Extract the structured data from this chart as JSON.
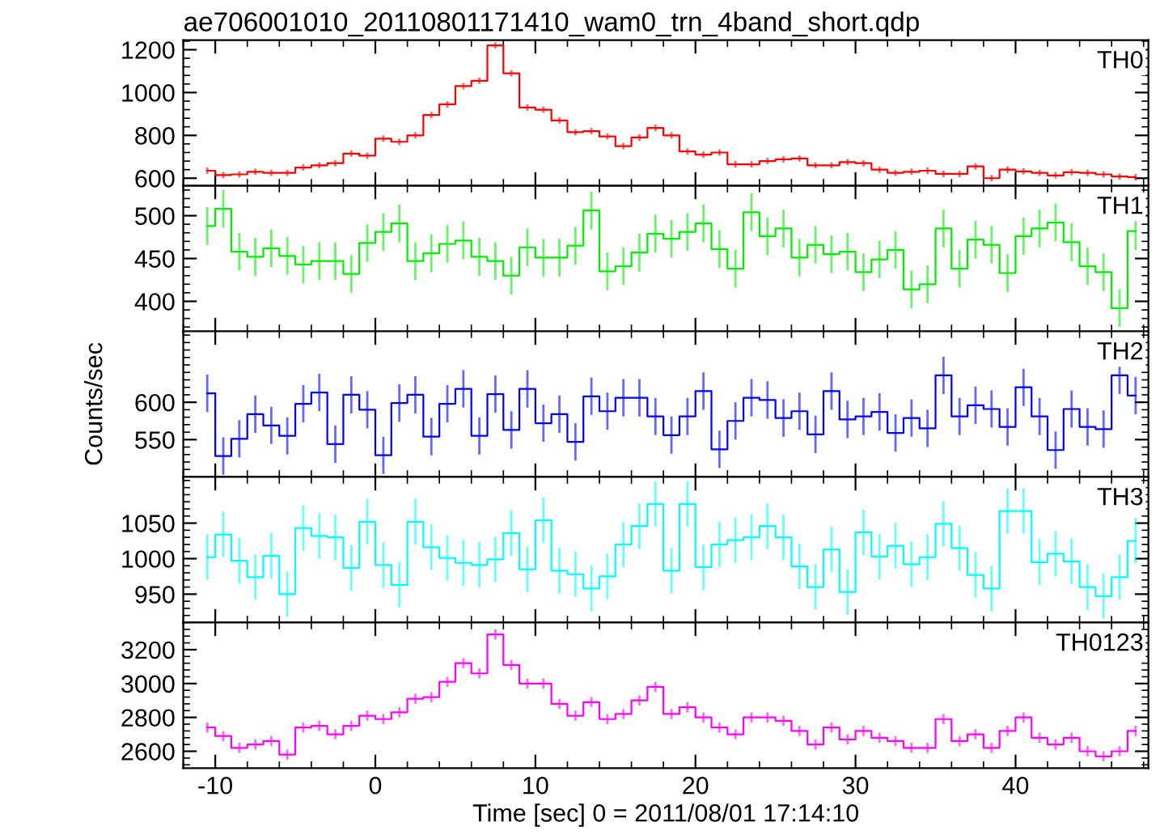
{
  "chart_data": [
    {
      "type": "step",
      "title": "ae706001010_20110801171410_wam0_trn_4band_short.qdp",
      "x": [
        -10.5,
        -9.5,
        -8.5,
        -7.5,
        -6.5,
        -5.5,
        -4.5,
        -3.5,
        -2.5,
        -1.5,
        -0.5,
        0.5,
        1.5,
        2.5,
        3.5,
        4.5,
        5.5,
        6.5,
        7.5,
        8.5,
        9.5,
        10.5,
        11.5,
        12.5,
        13.5,
        14.5,
        15.5,
        16.5,
        17.5,
        18.5,
        19.5,
        20.5,
        21.5,
        22.5,
        23.5,
        24.5,
        25.5,
        26.5,
        27.5,
        28.5,
        29.5,
        30.5,
        31.5,
        32.5,
        33.5,
        34.5,
        35.5,
        36.5,
        37.5,
        38.5,
        39.5,
        40.5,
        41.5,
        42.5,
        43.5,
        44.5,
        45.5,
        46.5,
        47.5
      ],
      "xlim": [
        -12,
        48.3
      ],
      "xticks": [
        -10,
        0,
        10,
        20,
        30,
        40
      ],
      "ylim": [
        565,
        1245
      ],
      "yticks": [
        600,
        800,
        1000,
        1200
      ],
      "tick_labels": "y",
      "series": [
        {
          "name": "TH0",
          "color": "#ff0000",
          "values": [
            635,
            615,
            618,
            630,
            625,
            625,
            650,
            660,
            670,
            715,
            705,
            785,
            770,
            800,
            895,
            945,
            1030,
            1055,
            1220,
            1090,
            930,
            920,
            870,
            815,
            820,
            795,
            750,
            790,
            835,
            800,
            725,
            710,
            720,
            665,
            665,
            680,
            688,
            692,
            660,
            660,
            675,
            670,
            640,
            625,
            630,
            635,
            620,
            620,
            655,
            600,
            640,
            632,
            625,
            613,
            628,
            625,
            618,
            608,
            605
          ],
          "errors": [
            15,
            15,
            15,
            15,
            15,
            15,
            15,
            15,
            15,
            15,
            15,
            15,
            15,
            15,
            15,
            15,
            15,
            15,
            15,
            15,
            15,
            15,
            15,
            15,
            15,
            15,
            15,
            15,
            15,
            15,
            15,
            15,
            15,
            15,
            15,
            15,
            15,
            15,
            15,
            15,
            15,
            15,
            15,
            15,
            15,
            15,
            15,
            15,
            15,
            15,
            15,
            15,
            15,
            15,
            15,
            15,
            15,
            15,
            15
          ]
        }
      ]
    },
    {
      "type": "step",
      "x": [
        -10.5,
        -9.5,
        -8.5,
        -7.5,
        -6.5,
        -5.5,
        -4.5,
        -3.5,
        -2.5,
        -1.5,
        -0.5,
        0.5,
        1.5,
        2.5,
        3.5,
        4.5,
        5.5,
        6.5,
        7.5,
        8.5,
        9.5,
        10.5,
        11.5,
        12.5,
        13.5,
        14.5,
        15.5,
        16.5,
        17.5,
        18.5,
        19.5,
        20.5,
        21.5,
        22.5,
        23.5,
        24.5,
        25.5,
        26.5,
        27.5,
        28.5,
        29.5,
        30.5,
        31.5,
        32.5,
        33.5,
        34.5,
        35.5,
        36.5,
        37.5,
        38.5,
        39.5,
        40.5,
        41.5,
        42.5,
        43.5,
        44.5,
        45.5,
        46.5,
        47.5
      ],
      "xlim": [
        -12,
        48.3
      ],
      "xticks": [
        -10,
        0,
        10,
        20,
        30,
        40
      ],
      "ylim": [
        365,
        535
      ],
      "yticks": [
        400,
        450,
        500
      ],
      "tick_labels": "y",
      "series": [
        {
          "name": "TH1",
          "color": "#00ee00",
          "values": [
            488,
            508,
            458,
            452,
            462,
            453,
            443,
            447,
            447,
            432,
            468,
            481,
            491,
            447,
            456,
            467,
            471,
            452,
            447,
            430,
            463,
            451,
            451,
            465,
            506,
            435,
            441,
            457,
            479,
            473,
            481,
            491,
            461,
            438,
            504,
            476,
            485,
            451,
            466,
            455,
            458,
            434,
            449,
            460,
            414,
            420,
            485,
            438,
            472,
            466,
            433,
            476,
            485,
            492,
            469,
            441,
            434,
            392,
            482
          ],
          "errors": [
            22,
            22,
            22,
            22,
            22,
            22,
            22,
            22,
            22,
            22,
            22,
            22,
            22,
            22,
            22,
            22,
            22,
            22,
            22,
            22,
            22,
            22,
            22,
            22,
            22,
            22,
            22,
            22,
            22,
            22,
            22,
            22,
            22,
            22,
            22,
            22,
            22,
            22,
            22,
            22,
            22,
            22,
            22,
            22,
            22,
            22,
            22,
            22,
            22,
            22,
            22,
            22,
            22,
            22,
            22,
            22,
            22,
            22,
            22
          ]
        }
      ]
    },
    {
      "type": "step",
      "x": [
        -10.5,
        -9.5,
        -8.5,
        -7.5,
        -6.5,
        -5.5,
        -4.5,
        -3.5,
        -2.5,
        -1.5,
        -0.5,
        0.5,
        1.5,
        2.5,
        3.5,
        4.5,
        5.5,
        6.5,
        7.5,
        8.5,
        9.5,
        10.5,
        11.5,
        12.5,
        13.5,
        14.5,
        15.5,
        16.5,
        17.5,
        18.5,
        19.5,
        20.5,
        21.5,
        22.5,
        23.5,
        24.5,
        25.5,
        26.5,
        27.5,
        28.5,
        29.5,
        30.5,
        31.5,
        32.5,
        33.5,
        34.5,
        35.5,
        36.5,
        37.5,
        38.5,
        39.5,
        40.5,
        41.5,
        42.5,
        43.5,
        44.5,
        45.5,
        46.5,
        47.5
      ],
      "xlim": [
        -12,
        48.3
      ],
      "xticks": [
        -10,
        0,
        10,
        20,
        30,
        40
      ],
      "ylim": [
        500,
        695
      ],
      "yticks": [
        550,
        600
      ],
      "tick_labels": "y",
      "ylabel": "Counts/sec",
      "series": [
        {
          "name": "TH2",
          "color": "#0000ff",
          "values": [
            612,
            528,
            551,
            584,
            569,
            555,
            598,
            613,
            544,
            610,
            590,
            529,
            599,
            610,
            554,
            598,
            618,
            555,
            611,
            563,
            618,
            572,
            584,
            547,
            608,
            588,
            606,
            606,
            581,
            556,
            581,
            615,
            537,
            575,
            606,
            603,
            579,
            588,
            557,
            615,
            577,
            581,
            587,
            559,
            579,
            565,
            636,
            581,
            596,
            591,
            567,
            620,
            581,
            536,
            591,
            567,
            564,
            636,
            609
          ],
          "errors": [
            25,
            25,
            25,
            25,
            25,
            25,
            25,
            25,
            25,
            25,
            25,
            25,
            25,
            25,
            25,
            25,
            25,
            25,
            25,
            25,
            25,
            25,
            25,
            25,
            25,
            25,
            25,
            25,
            25,
            25,
            25,
            25,
            25,
            25,
            25,
            25,
            25,
            25,
            25,
            25,
            25,
            25,
            25,
            25,
            25,
            25,
            25,
            25,
            25,
            25,
            25,
            25,
            25,
            25,
            25,
            25,
            25,
            25,
            25
          ]
        }
      ]
    },
    {
      "type": "step",
      "x": [
        -10.5,
        -9.5,
        -8.5,
        -7.5,
        -6.5,
        -5.5,
        -4.5,
        -3.5,
        -2.5,
        -1.5,
        -0.5,
        0.5,
        1.5,
        2.5,
        3.5,
        4.5,
        5.5,
        6.5,
        7.5,
        8.5,
        9.5,
        10.5,
        11.5,
        12.5,
        13.5,
        14.5,
        15.5,
        16.5,
        17.5,
        18.5,
        19.5,
        20.5,
        21.5,
        22.5,
        23.5,
        24.5,
        25.5,
        26.5,
        27.5,
        28.5,
        29.5,
        30.5,
        31.5,
        32.5,
        33.5,
        34.5,
        35.5,
        36.5,
        37.5,
        38.5,
        39.5,
        40.5,
        41.5,
        42.5,
        43.5,
        44.5,
        45.5,
        46.5,
        47.5
      ],
      "xlim": [
        -12,
        48.3
      ],
      "xticks": [
        -10,
        0,
        10,
        20,
        30,
        40
      ],
      "ylim": [
        910,
        1115
      ],
      "yticks": [
        950,
        1000,
        1050
      ],
      "tick_labels": "y",
      "series": [
        {
          "name": "TH3",
          "color": "#00ffff",
          "values": [
            1002,
            1034,
            997,
            974,
            1004,
            950,
            1043,
            1032,
            1030,
            987,
            1052,
            991,
            963,
            1052,
            1016,
            1001,
            994,
            991,
            999,
            1036,
            985,
            1054,
            983,
            978,
            958,
            975,
            1020,
            1046,
            1077,
            983,
            1077,
            988,
            1020,
            1026,
            1030,
            1046,
            1030,
            989,
            960,
            1013,
            953,
            1037,
            1003,
            1018,
            992,
            1002,
            1049,
            1015,
            977,
            958,
            1067,
            1067,
            995,
            1007,
            996,
            960,
            947,
            974,
            1025
          ],
          "errors": [
            32,
            32,
            32,
            32,
            32,
            32,
            32,
            32,
            32,
            32,
            32,
            32,
            32,
            32,
            32,
            32,
            32,
            32,
            32,
            32,
            32,
            32,
            32,
            32,
            32,
            32,
            32,
            32,
            32,
            32,
            32,
            32,
            32,
            32,
            32,
            32,
            32,
            32,
            32,
            32,
            32,
            32,
            32,
            32,
            32,
            32,
            32,
            32,
            32,
            32,
            32,
            32,
            32,
            32,
            32,
            32,
            32,
            32,
            32
          ]
        }
      ]
    },
    {
      "type": "step",
      "x": [
        -10.5,
        -9.5,
        -8.5,
        -7.5,
        -6.5,
        -5.5,
        -4.5,
        -3.5,
        -2.5,
        -1.5,
        -0.5,
        0.5,
        1.5,
        2.5,
        3.5,
        4.5,
        5.5,
        6.5,
        7.5,
        8.5,
        9.5,
        10.5,
        11.5,
        12.5,
        13.5,
        14.5,
        15.5,
        16.5,
        17.5,
        18.5,
        19.5,
        20.5,
        21.5,
        22.5,
        23.5,
        24.5,
        25.5,
        26.5,
        27.5,
        28.5,
        29.5,
        30.5,
        31.5,
        32.5,
        33.5,
        34.5,
        35.5,
        36.5,
        37.5,
        38.5,
        39.5,
        40.5,
        41.5,
        42.5,
        43.5,
        44.5,
        45.5,
        46.5,
        47.5
      ],
      "xlim": [
        -12,
        48.3
      ],
      "xticks": [
        -10,
        0,
        10,
        20,
        30,
        40
      ],
      "ylim": [
        2500,
        3360
      ],
      "yticks": [
        2600,
        2800,
        3000,
        3200
      ],
      "xlabel": "Time [sec] 0 = 2011/08/01 17:14:10",
      "series": [
        {
          "name": "TH0123",
          "color": "#ff00ff",
          "values": [
            2740,
            2690,
            2620,
            2640,
            2660,
            2580,
            2740,
            2750,
            2700,
            2750,
            2810,
            2790,
            2830,
            2910,
            2920,
            3010,
            3120,
            3060,
            3290,
            3110,
            3000,
            3000,
            2880,
            2810,
            2890,
            2790,
            2820,
            2900,
            2980,
            2820,
            2860,
            2800,
            2740,
            2700,
            2800,
            2800,
            2780,
            2720,
            2640,
            2740,
            2670,
            2720,
            2680,
            2660,
            2620,
            2620,
            2790,
            2660,
            2700,
            2620,
            2720,
            2800,
            2680,
            2640,
            2680,
            2600,
            2570,
            2600,
            2720
          ],
          "errors": [
            30,
            30,
            30,
            30,
            30,
            30,
            30,
            30,
            30,
            30,
            30,
            30,
            30,
            30,
            30,
            30,
            30,
            30,
            30,
            30,
            30,
            30,
            30,
            30,
            30,
            30,
            30,
            30,
            30,
            30,
            30,
            30,
            30,
            30,
            30,
            30,
            30,
            30,
            30,
            30,
            30,
            30,
            30,
            30,
            30,
            30,
            30,
            30,
            30,
            30,
            30,
            30,
            30,
            30,
            30,
            30,
            30,
            30,
            30
          ]
        }
      ]
    }
  ]
}
